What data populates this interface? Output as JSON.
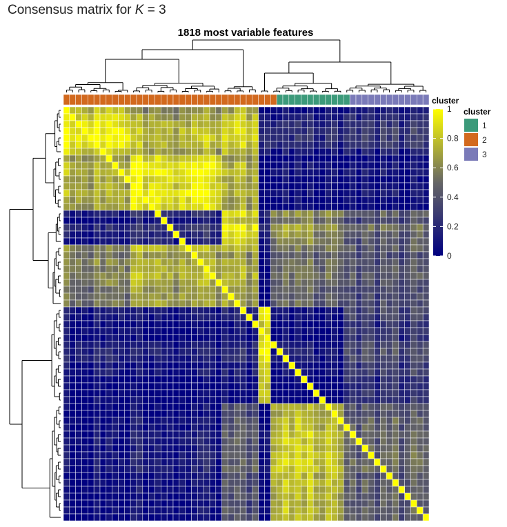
{
  "header": {
    "prefix": "Consensus matrix for ",
    "k_symbol": "K",
    "suffix": " = 3"
  },
  "chart_data": {
    "type": "heatmap",
    "title": "1818 most variable features",
    "samples": 60,
    "sample_clusters": [
      2,
      2,
      2,
      2,
      2,
      2,
      2,
      2,
      2,
      2,
      2,
      2,
      2,
      2,
      2,
      2,
      2,
      2,
      2,
      2,
      2,
      2,
      2,
      2,
      2,
      2,
      2,
      2,
      2,
      2,
      2,
      2,
      2,
      2,
      2,
      1,
      1,
      1,
      1,
      1,
      1,
      1,
      1,
      1,
      1,
      1,
      1,
      3,
      3,
      3,
      3,
      3,
      3,
      3,
      3,
      3,
      3,
      3,
      3,
      3
    ],
    "row_blocks": [
      7,
      8,
      5,
      9,
      14,
      17
    ],
    "col_blocks": [
      11,
      15,
      6,
      2,
      12,
      14
    ],
    "block_values": [
      [
        0.88,
        0.7,
        0.78,
        0.2,
        0.12,
        0.18
      ],
      [
        0.76,
        0.94,
        0.74,
        0.04,
        0.06,
        0.06
      ],
      [
        0.12,
        0.18,
        0.84,
        0.22,
        0.6,
        0.42
      ],
      [
        0.58,
        0.72,
        0.7,
        0.08,
        0.5,
        0.38
      ],
      [
        0.1,
        0.06,
        0.12,
        0.94,
        0.04,
        0.28
      ],
      [
        0.06,
        0.1,
        0.42,
        0.1,
        0.78,
        0.45
      ]
    ],
    "color_scale": {
      "stops": [
        {
          "value": 0,
          "color": "#000080"
        },
        {
          "value": 0.5,
          "color": "#666666"
        },
        {
          "value": 1,
          "color": "#ffff00"
        }
      ],
      "ticks": [
        "0",
        "0.2",
        "0.4",
        "0.6",
        "0.8",
        "1"
      ]
    },
    "annotation": {
      "title": "cluster",
      "legend_title": "cluster",
      "levels": [
        {
          "label": "1",
          "color": "#3c9a7a"
        },
        {
          "label": "2",
          "color": "#d2691e"
        },
        {
          "label": "3",
          "color": "#7a7ab8"
        }
      ]
    },
    "grid": true,
    "legend_position": "right"
  }
}
